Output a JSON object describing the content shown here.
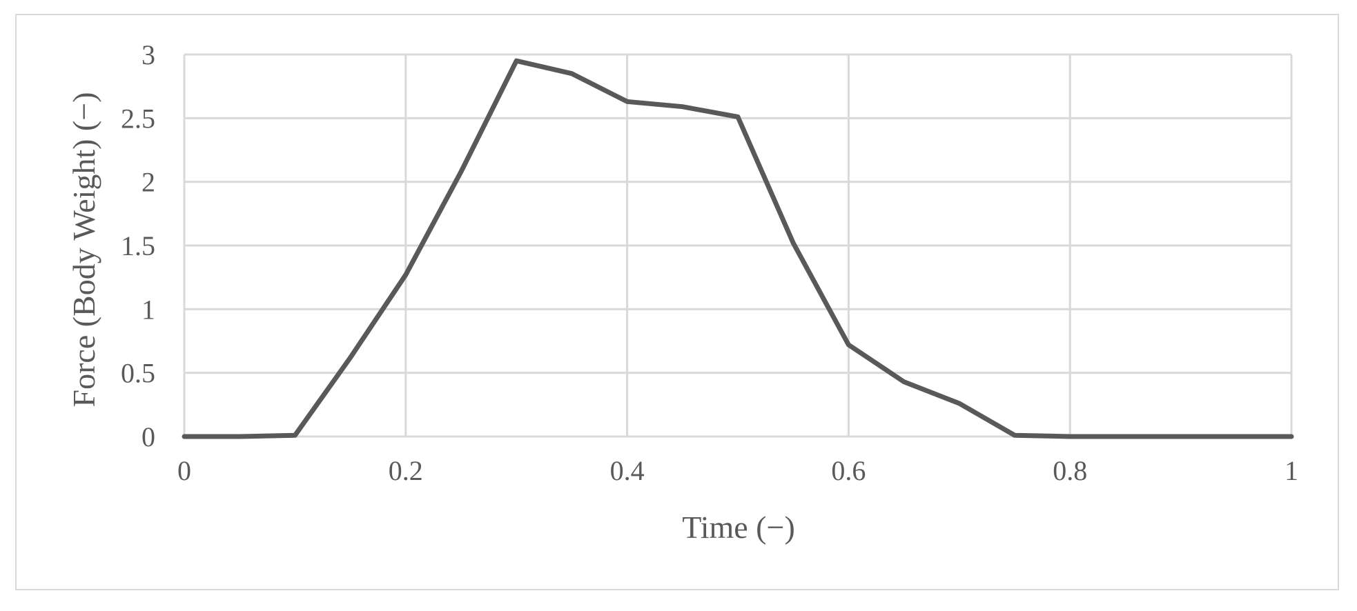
{
  "chart_data": {
    "type": "line",
    "title": "",
    "xlabel": "Time  (−)",
    "ylabel": "Force (Body Weight) (−)",
    "xlim": [
      0,
      1
    ],
    "ylim": [
      0,
      3
    ],
    "x_ticks": [
      0,
      0.2,
      0.4,
      0.6,
      0.8,
      1
    ],
    "x_tick_labels": [
      "0",
      "0.2",
      "0.4",
      "0.6",
      "0.8",
      "1"
    ],
    "y_ticks": [
      0,
      0.5,
      1,
      1.5,
      2,
      2.5,
      3
    ],
    "y_tick_labels": [
      "0",
      "0.5",
      "1",
      "1.5",
      "2",
      "2.5",
      "3"
    ],
    "grid": true,
    "legend": "none",
    "series": [
      {
        "color": "#595959",
        "x": [
          0,
          0.05,
          0.1,
          0.15,
          0.2,
          0.25,
          0.3,
          0.35,
          0.4,
          0.45,
          0.5,
          0.55,
          0.6,
          0.65,
          0.7,
          0.75,
          0.8,
          0.85,
          0.9,
          0.95,
          1
        ],
        "y": [
          0,
          0,
          0.01,
          0.62,
          1.27,
          2.08,
          2.95,
          2.85,
          2.63,
          2.59,
          2.51,
          1.52,
          0.72,
          0.43,
          0.26,
          0.01,
          0,
          0,
          0,
          0,
          0
        ]
      }
    ]
  }
}
